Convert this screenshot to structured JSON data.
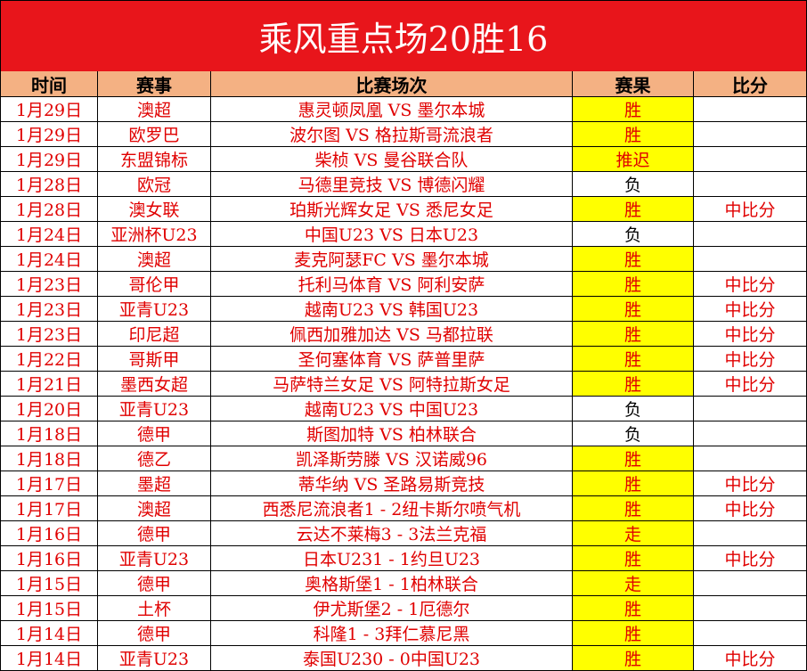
{
  "header": {
    "title": "乘风重点场20胜16"
  },
  "table": {
    "columns": [
      "时间",
      "赛事",
      "比赛场次",
      "赛果",
      "比分"
    ],
    "rows": [
      {
        "cells": [
          "1月29日",
          "澳超",
          "惠灵顿凤凰 VS 墨尔本城",
          "胜",
          null
        ],
        "highlight": true
      },
      {
        "cells": [
          "1月29日",
          "欧罗巴",
          "波尔图 VS 格拉斯哥流浪者",
          "胜",
          null
        ],
        "highlight": true
      },
      {
        "cells": [
          "1月29日",
          "东盟锦标",
          "柴桢 VS 曼谷联合队",
          "推迟",
          null
        ],
        "highlight": true
      },
      {
        "cells": [
          "1月28日",
          "欧冠",
          "马德里竞技 VS 博德闪耀",
          "负",
          null
        ],
        "highlight": false
      },
      {
        "cells": [
          "1月28日",
          "澳女联",
          "珀斯光辉女足 VS 悉尼女足",
          "胜",
          "中比分"
        ],
        "highlight": true
      },
      {
        "cells": [
          "1月24日",
          "亚洲杯U23",
          "中国U23 VS 日本U23",
          "负",
          null
        ],
        "highlight": false
      },
      {
        "cells": [
          "1月24日",
          "澳超",
          "麦克阿瑟FC VS 墨尔本城",
          "胜",
          null
        ],
        "highlight": true
      },
      {
        "cells": [
          "1月23日",
          "哥伦甲",
          "托利马体育 VS 阿利安萨",
          "胜",
          "中比分"
        ],
        "highlight": true
      },
      {
        "cells": [
          "1月23日",
          "亚青U23",
          "越南U23 VS 韩国U23",
          "胜",
          "中比分"
        ],
        "highlight": true
      },
      {
        "cells": [
          "1月23日",
          "印尼超",
          "佩西加雅加达 VS 马都拉联",
          "胜",
          "中比分"
        ],
        "highlight": true
      },
      {
        "cells": [
          "1月22日",
          "哥斯甲",
          "圣何塞体育 VS 萨普里萨",
          "胜",
          "中比分"
        ],
        "highlight": true
      },
      {
        "cells": [
          "1月21日",
          "墨西女超",
          "马萨特兰女足 VS 阿特拉斯女足",
          "胜",
          "中比分"
        ],
        "highlight": true
      },
      {
        "cells": [
          "1月20日",
          "亚青U23",
          "越南U23 VS 中国U23",
          "负",
          null
        ],
        "highlight": false
      },
      {
        "cells": [
          "1月18日",
          "德甲",
          "斯图加特 VS 柏林联合",
          "负",
          null
        ],
        "highlight": false
      },
      {
        "cells": [
          "1月18日",
          "德乙",
          "凯泽斯劳滕 VS 汉诺威96",
          "胜",
          null
        ],
        "highlight": true
      },
      {
        "cells": [
          "1月17日",
          "墨超",
          "蒂华纳 VS 圣路易斯竞技",
          "胜",
          "中比分"
        ],
        "highlight": true
      },
      {
        "cells": [
          "1月17日",
          "澳超",
          "西悉尼流浪者1 - 2纽卡斯尔喷气机",
          "胜",
          "中比分"
        ],
        "highlight": true
      },
      {
        "cells": [
          "1月16日",
          "德甲",
          "云达不莱梅3 - 3法兰克福",
          "走",
          null
        ],
        "highlight": true
      },
      {
        "cells": [
          "1月16日",
          "亚青U23",
          "日本U231 - 1约旦U23",
          "胜",
          "中比分"
        ],
        "highlight": true
      },
      {
        "cells": [
          "1月15日",
          "德甲",
          "奥格斯堡1 - 1柏林联合",
          "走",
          null
        ],
        "highlight": true
      },
      {
        "cells": [
          "1月15日",
          "土杯",
          "伊尤斯堡2 - 1厄德尔",
          "胜",
          null
        ],
        "highlight": true
      },
      {
        "cells": [
          "1月14日",
          "德甲",
          "科隆1 - 3拜仁慕尼黑",
          "胜",
          null
        ],
        "highlight": true
      },
      {
        "cells": [
          "1月14日",
          "亚青U23",
          "泰国U230 - 0中国U23",
          "胜",
          "中比分"
        ],
        "highlight": true
      }
    ]
  }
}
